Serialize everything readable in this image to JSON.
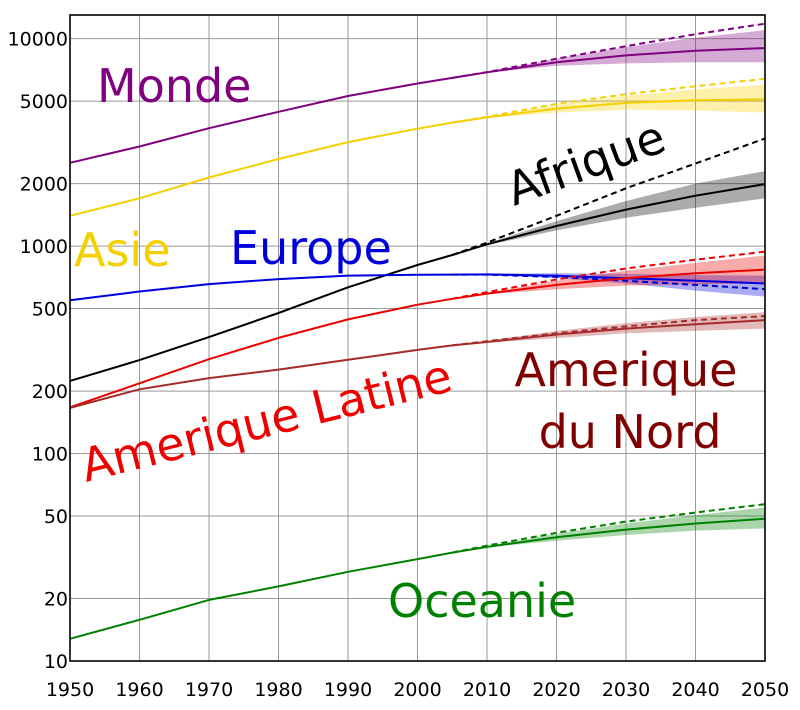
{
  "chart_data": {
    "type": "line",
    "scale": "log",
    "xlim": [
      1950,
      2050
    ],
    "ylim": [
      10,
      13000
    ],
    "grid": true,
    "xticks": [
      1950,
      1960,
      1970,
      1980,
      1990,
      2000,
      2010,
      2020,
      2030,
      2040,
      2050
    ],
    "yticks": [
      10,
      20,
      50,
      100,
      200,
      500,
      1000,
      2000,
      5000,
      10000
    ],
    "ytick_labels": [
      "10",
      "20",
      "50",
      "100",
      "200",
      "500",
      "1000",
      "2000",
      "5000",
      "10000"
    ],
    "projection_start": 2005,
    "series": [
      {
        "name": "Monde",
        "color": "#800080",
        "x": [
          1950,
          1960,
          1970,
          1980,
          1990,
          2000,
          2005,
          2010,
          2020,
          2030,
          2040,
          2050
        ],
        "y": [
          2520,
          3020,
          3700,
          4440,
          5290,
          6080,
          6470,
          6880,
          7700,
          8300,
          8750,
          9000
        ],
        "high": {
          "x": [
            2005,
            2010,
            2020,
            2030,
            2040,
            2050
          ],
          "y": [
            6470,
            6900,
            8000,
            9100,
            10100,
            11000
          ]
        },
        "low": {
          "x": [
            2005,
            2010,
            2020,
            2030,
            2040,
            2050
          ],
          "y": [
            6470,
            6850,
            7400,
            7600,
            7700,
            7700
          ]
        },
        "const": {
          "x": [
            2005,
            2010,
            2020,
            2030,
            2040,
            2050
          ],
          "y": [
            6470,
            6900,
            8000,
            9200,
            10500,
            11800
          ]
        }
      },
      {
        "name": "Asie",
        "color": "#f5d000",
        "x": [
          1950,
          1960,
          1970,
          1980,
          1990,
          2000,
          2005,
          2010,
          2020,
          2030,
          2040,
          2050
        ],
        "y": [
          1400,
          1700,
          2140,
          2630,
          3170,
          3680,
          3940,
          4170,
          4600,
          4900,
          5050,
          5100
        ],
        "high": {
          "x": [
            2005,
            2010,
            2020,
            2030,
            2040,
            2050
          ],
          "y": [
            3940,
            4180,
            4800,
            5300,
            5700,
            6000
          ]
        },
        "low": {
          "x": [
            2005,
            2010,
            2020,
            2030,
            2040,
            2050
          ],
          "y": [
            3940,
            4150,
            4400,
            4550,
            4500,
            4400
          ]
        },
        "const": {
          "x": [
            2005,
            2010,
            2020,
            2030,
            2040,
            2050
          ],
          "y": [
            3940,
            4200,
            4850,
            5400,
            5900,
            6400
          ]
        }
      },
      {
        "name": "Afrique",
        "color": "#000000",
        "x": [
          1950,
          1960,
          1970,
          1980,
          1990,
          2000,
          2005,
          2010,
          2020,
          2030,
          2040,
          2050
        ],
        "y": [
          224,
          282,
          364,
          476,
          633,
          811,
          906,
          1020,
          1250,
          1500,
          1750,
          1990
        ],
        "high": {
          "x": [
            2005,
            2010,
            2020,
            2030,
            2040,
            2050
          ],
          "y": [
            906,
            1030,
            1320,
            1650,
            2000,
            2300
          ]
        },
        "low": {
          "x": [
            2005,
            2010,
            2020,
            2030,
            2040,
            2050
          ],
          "y": [
            906,
            1010,
            1190,
            1370,
            1530,
            1700
          ]
        },
        "const": {
          "x": [
            2005,
            2010,
            2020,
            2030,
            2040,
            2050
          ],
          "y": [
            906,
            1040,
            1400,
            1900,
            2500,
            3300
          ]
        }
      },
      {
        "name": "Europe",
        "color": "#0000dd",
        "x": [
          1950,
          1960,
          1970,
          1980,
          1990,
          2000,
          2005,
          2010,
          2020,
          2030,
          2040,
          2050
        ],
        "y": [
          548,
          604,
          656,
          693,
          721,
          727,
          729,
          730,
          720,
          700,
          680,
          660
        ],
        "high": {
          "x": [
            2005,
            2010,
            2020,
            2030,
            2040,
            2050
          ],
          "y": [
            729,
            735,
            740,
            735,
            725,
            720
          ]
        },
        "low": {
          "x": [
            2005,
            2010,
            2020,
            2030,
            2040,
            2050
          ],
          "y": [
            729,
            725,
            700,
            660,
            610,
            570
          ]
        },
        "const": {
          "x": [
            2005,
            2010,
            2020,
            2030,
            2040,
            2050
          ],
          "y": [
            729,
            728,
            710,
            680,
            650,
            620
          ]
        }
      },
      {
        "name": "Amerique Latine",
        "color": "#ee0000",
        "x": [
          1950,
          1960,
          1970,
          1980,
          1990,
          2000,
          2005,
          2010,
          2020,
          2030,
          2040,
          2050
        ],
        "y": [
          167,
          218,
          285,
          361,
          443,
          522,
          557,
          590,
          650,
          700,
          740,
          770
        ],
        "high": {
          "x": [
            2005,
            2010,
            2020,
            2030,
            2040,
            2050
          ],
          "y": [
            557,
            595,
            680,
            760,
            830,
            900
          ]
        },
        "low": {
          "x": [
            2005,
            2010,
            2020,
            2030,
            2040,
            2050
          ],
          "y": [
            557,
            585,
            620,
            645,
            655,
            660
          ]
        },
        "const": {
          "x": [
            2005,
            2010,
            2020,
            2030,
            2040,
            2050
          ],
          "y": [
            557,
            600,
            690,
            780,
            860,
            940
          ]
        }
      },
      {
        "name": "Amerique du Nord",
        "color": "#a52a2a",
        "x": [
          1950,
          1960,
          1970,
          1980,
          1990,
          2000,
          2005,
          2010,
          2020,
          2030,
          2040,
          2050
        ],
        "y": [
          166,
          204,
          231,
          254,
          283,
          316,
          332,
          345,
          375,
          400,
          420,
          440
        ],
        "high": {
          "x": [
            2005,
            2010,
            2020,
            2030,
            2040,
            2050
          ],
          "y": [
            332,
            350,
            390,
            425,
            455,
            480
          ]
        },
        "low": {
          "x": [
            2005,
            2010,
            2020,
            2030,
            2040,
            2050
          ],
          "y": [
            332,
            342,
            360,
            380,
            390,
            400
          ]
        },
        "const": {
          "x": [
            2005,
            2010,
            2020,
            2030,
            2040,
            2050
          ],
          "y": [
            332,
            348,
            380,
            410,
            440,
            460
          ]
        }
      },
      {
        "name": "Oceanie",
        "color": "#008000",
        "x": [
          1950,
          1960,
          1970,
          1980,
          1990,
          2000,
          2005,
          2010,
          2020,
          2030,
          2040,
          2050
        ],
        "y": [
          12.8,
          15.8,
          19.7,
          22.9,
          26.9,
          31.0,
          33.3,
          35.5,
          39.5,
          43.0,
          46.0,
          48.5
        ],
        "high": {
          "x": [
            2005,
            2010,
            2020,
            2030,
            2040,
            2050
          ],
          "y": [
            33.3,
            35.8,
            41.0,
            46.0,
            50.5,
            55.0
          ]
        },
        "low": {
          "x": [
            2005,
            2010,
            2020,
            2030,
            2040,
            2050
          ],
          "y": [
            33.3,
            35.3,
            38.0,
            40.5,
            42.5,
            43.5
          ]
        },
        "const": {
          "x": [
            2005,
            2010,
            2020,
            2030,
            2040,
            2050
          ],
          "y": [
            33.3,
            36.0,
            41.5,
            47.0,
            52.0,
            57.0
          ]
        }
      }
    ],
    "labels": [
      {
        "text": "Monde",
        "color": "#800080"
      },
      {
        "text": "Asie",
        "color": "#f5d000"
      },
      {
        "text": "Europe",
        "color": "#0000dd"
      },
      {
        "text": "Afrique",
        "color": "#000000"
      },
      {
        "text": "Amerique Latine",
        "color": "#ee0000"
      },
      {
        "text": "Amerique",
        "color": "#800000"
      },
      {
        "text": "du Nord",
        "color": "#800000"
      },
      {
        "text": "Oceanie",
        "color": "#008000"
      }
    ]
  }
}
